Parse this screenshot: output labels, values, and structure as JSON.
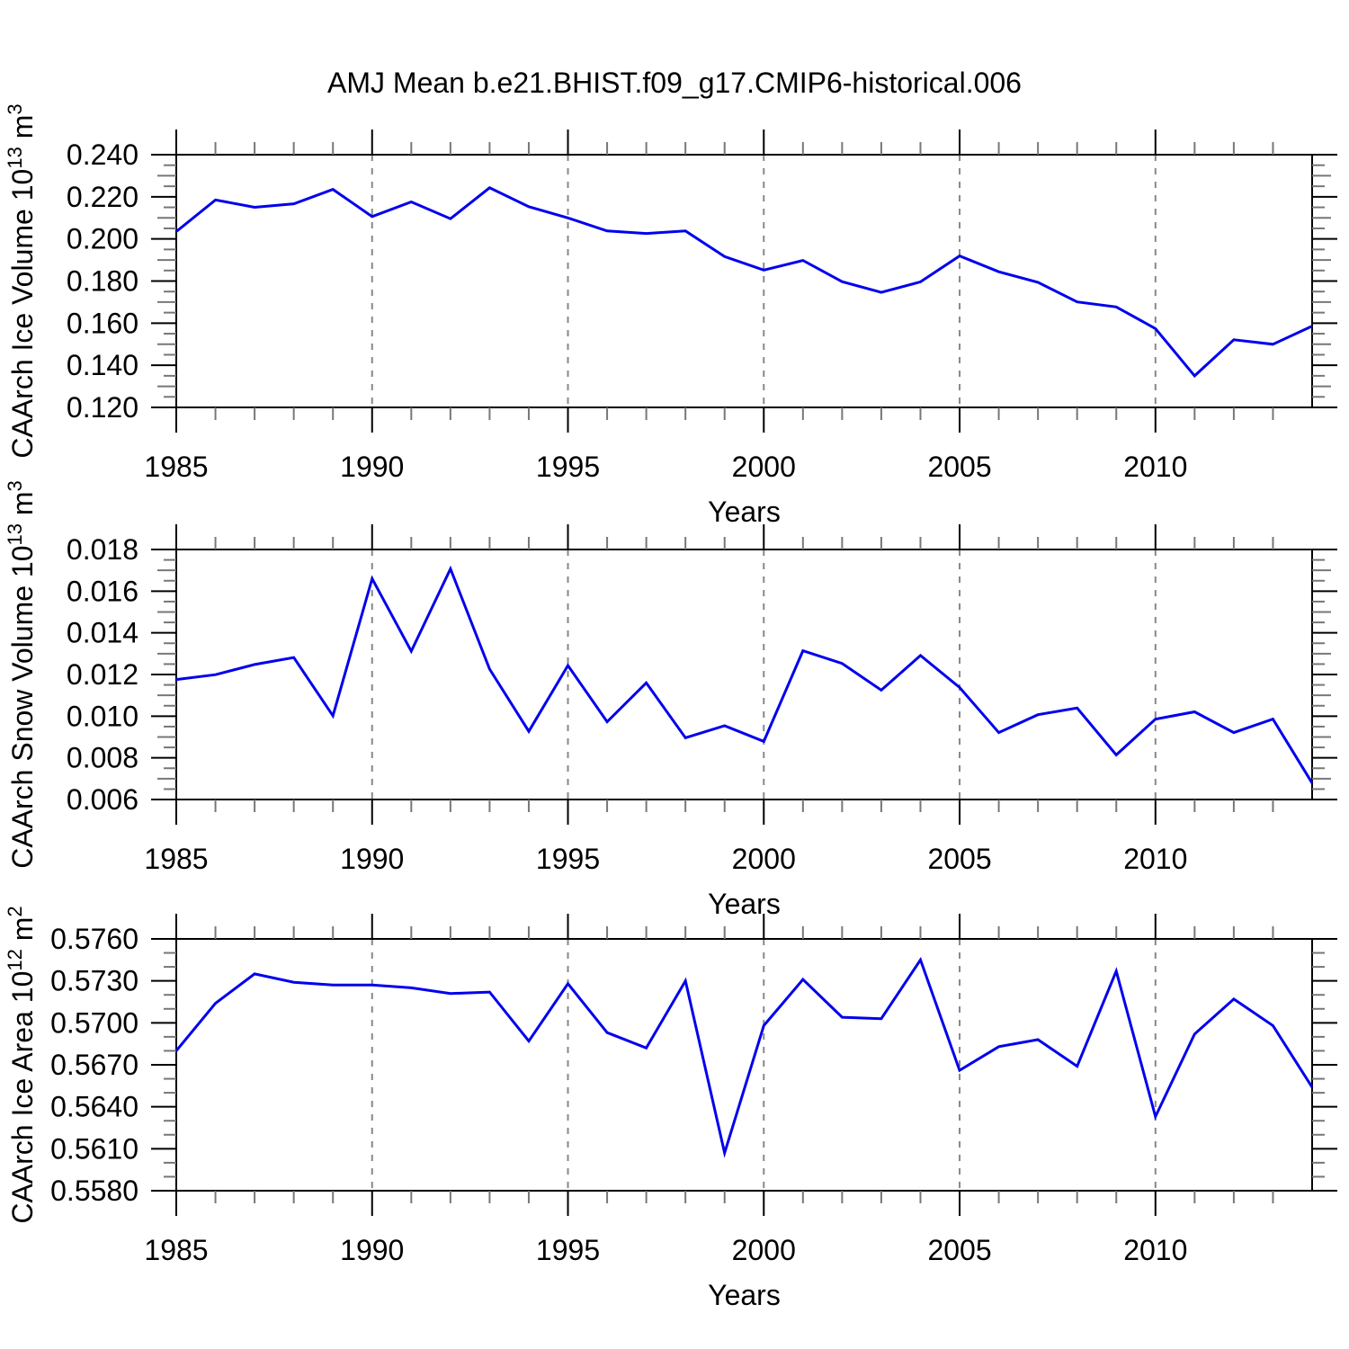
{
  "title": "AMJ Mean b.e21.BHIST.f09_g17.CMIP6-historical.006",
  "colors": {
    "line": "#0000EE",
    "axis": "#000000",
    "minor_tick": "#777777",
    "gridline": "#888888",
    "background": "#ffffff"
  },
  "chart_data": [
    {
      "type": "line",
      "panel": "ice-volume",
      "ylabel": "CAArch Ice Volume 10^13 m^3",
      "xlabel": "Years",
      "legend": "none",
      "grid": "vertical-dashed",
      "xlim": [
        1985,
        2014
      ],
      "ylim": [
        0.12,
        0.24
      ],
      "yticks": [
        0.12,
        0.14,
        0.16,
        0.18,
        0.2,
        0.22,
        0.24
      ],
      "ytick_decimals": 3,
      "yminor_step": 0.005,
      "x_major_ticks": [
        1985,
        1990,
        1995,
        2000,
        2005,
        2010
      ],
      "gridline_years": [
        1990,
        1995,
        2000,
        2005,
        2010
      ],
      "x": [
        1985,
        1986,
        1987,
        1988,
        1989,
        1990,
        1991,
        1992,
        1993,
        1994,
        1995,
        1996,
        1997,
        1998,
        1999,
        2000,
        2001,
        2002,
        2003,
        2004,
        2005,
        2006,
        2007,
        2008,
        2009,
        2010,
        2011,
        2012,
        2013,
        2014
      ],
      "values": [
        0.2035,
        0.2185,
        0.215,
        0.2167,
        0.2235,
        0.2106,
        0.2176,
        0.2096,
        0.2243,
        0.2153,
        0.21,
        0.2038,
        0.2026,
        0.2038,
        0.1916,
        0.1852,
        0.1898,
        0.1797,
        0.1746,
        0.1796,
        0.1919,
        0.1844,
        0.1794,
        0.1701,
        0.1677,
        0.1574,
        0.135,
        0.1521,
        0.15,
        0.1586
      ]
    },
    {
      "type": "line",
      "panel": "snow-volume",
      "ylabel": "CAArch Snow Volume 10^13 m^3",
      "xlabel": "Years",
      "legend": "none",
      "grid": "vertical-dashed",
      "xlim": [
        1985,
        2014
      ],
      "ylim": [
        0.006,
        0.018
      ],
      "yticks": [
        0.006,
        0.008,
        0.01,
        0.012,
        0.014,
        0.016,
        0.018
      ],
      "ytick_decimals": 3,
      "yminor_step": 0.0005,
      "x_major_ticks": [
        1985,
        1990,
        1995,
        2000,
        2005,
        2010
      ],
      "gridline_years": [
        1990,
        1995,
        2000,
        2005,
        2010
      ],
      "x": [
        1985,
        1986,
        1987,
        1988,
        1989,
        1990,
        1991,
        1992,
        1993,
        1994,
        1995,
        1996,
        1997,
        1998,
        1999,
        2000,
        2001,
        2002,
        2003,
        2004,
        2005,
        2006,
        2007,
        2008,
        2009,
        2010,
        2011,
        2012,
        2013,
        2014
      ],
      "values": [
        0.01176,
        0.01199,
        0.01248,
        0.01281,
        0.01002,
        0.0166,
        0.01312,
        0.01707,
        0.01226,
        0.00927,
        0.01243,
        0.00973,
        0.0116,
        0.00896,
        0.00954,
        0.00879,
        0.01314,
        0.01253,
        0.01125,
        0.01291,
        0.01138,
        0.00921,
        0.01007,
        0.01039,
        0.00814,
        0.00986,
        0.01021,
        0.00921,
        0.00986,
        0.00679
      ]
    },
    {
      "type": "line",
      "panel": "ice-area",
      "ylabel": "CAArch Ice Area 10^12 m^2",
      "xlabel": "Years",
      "legend": "none",
      "grid": "vertical-dashed",
      "xlim": [
        1985,
        2014
      ],
      "ylim": [
        0.558,
        0.576
      ],
      "yticks": [
        0.558,
        0.561,
        0.564,
        0.567,
        0.57,
        0.573,
        0.576
      ],
      "ytick_decimals": 4,
      "yminor_step": 0.001,
      "x_major_ticks": [
        1985,
        1990,
        1995,
        2000,
        2005,
        2010
      ],
      "gridline_years": [
        1990,
        1995,
        2000,
        2005,
        2010
      ],
      "x": [
        1985,
        1986,
        1987,
        1988,
        1989,
        1990,
        1991,
        1992,
        1993,
        1994,
        1995,
        1996,
        1997,
        1998,
        1999,
        2000,
        2001,
        2002,
        2003,
        2004,
        2005,
        2006,
        2007,
        2008,
        2009,
        2010,
        2011,
        2012,
        2013,
        2014
      ],
      "values": [
        0.568,
        0.5714,
        0.5735,
        0.5729,
        0.5727,
        0.5727,
        0.5725,
        0.5721,
        0.5722,
        0.5687,
        0.5728,
        0.5693,
        0.5682,
        0.573,
        0.5607,
        0.5698,
        0.5731,
        0.5704,
        0.5703,
        0.5745,
        0.5666,
        0.5683,
        0.5688,
        0.5669,
        0.5737,
        0.5633,
        0.5692,
        0.5717,
        0.5698,
        0.5654
      ]
    }
  ]
}
